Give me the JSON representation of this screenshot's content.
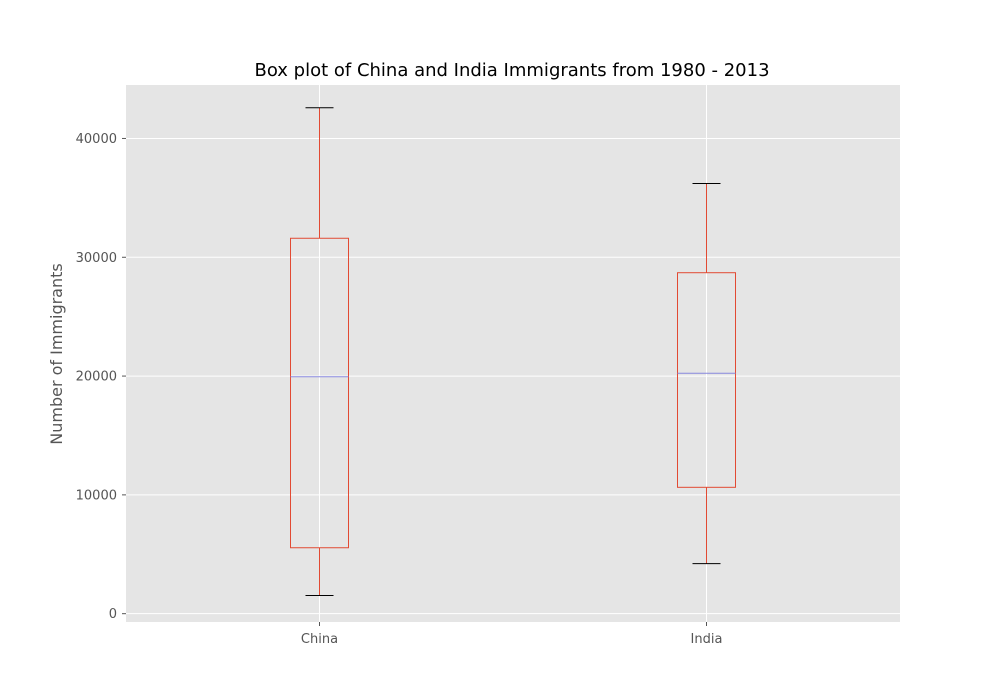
{
  "chart_data": {
    "type": "box",
    "title": "Box plot of China and India Immigrants from 1980 - 2013",
    "xlabel": "",
    "ylabel": "Number of Immigrants",
    "ylim": [
      -700,
      44500
    ],
    "yticks": [
      0,
      10000,
      20000,
      30000,
      40000
    ],
    "ytick_labels": [
      "0",
      "10000",
      "20000",
      "30000",
      "40000"
    ],
    "categories": [
      "China",
      "India"
    ],
    "boxes": [
      {
        "category": "China",
        "whisker_low": 1527,
        "q1": 5550,
        "median": 19945,
        "q3": 31600,
        "whisker_high": 42584
      },
      {
        "category": "India",
        "whisker_low": 4211,
        "q1": 10637,
        "median": 20235,
        "q3": 28700,
        "whisker_high": 36210
      }
    ],
    "grid": true,
    "colors": {
      "plot_background": "#e5e5e5",
      "grid": "#ffffff",
      "box": "#e24a33",
      "median": "#8888dd",
      "caps": "#000000"
    }
  }
}
